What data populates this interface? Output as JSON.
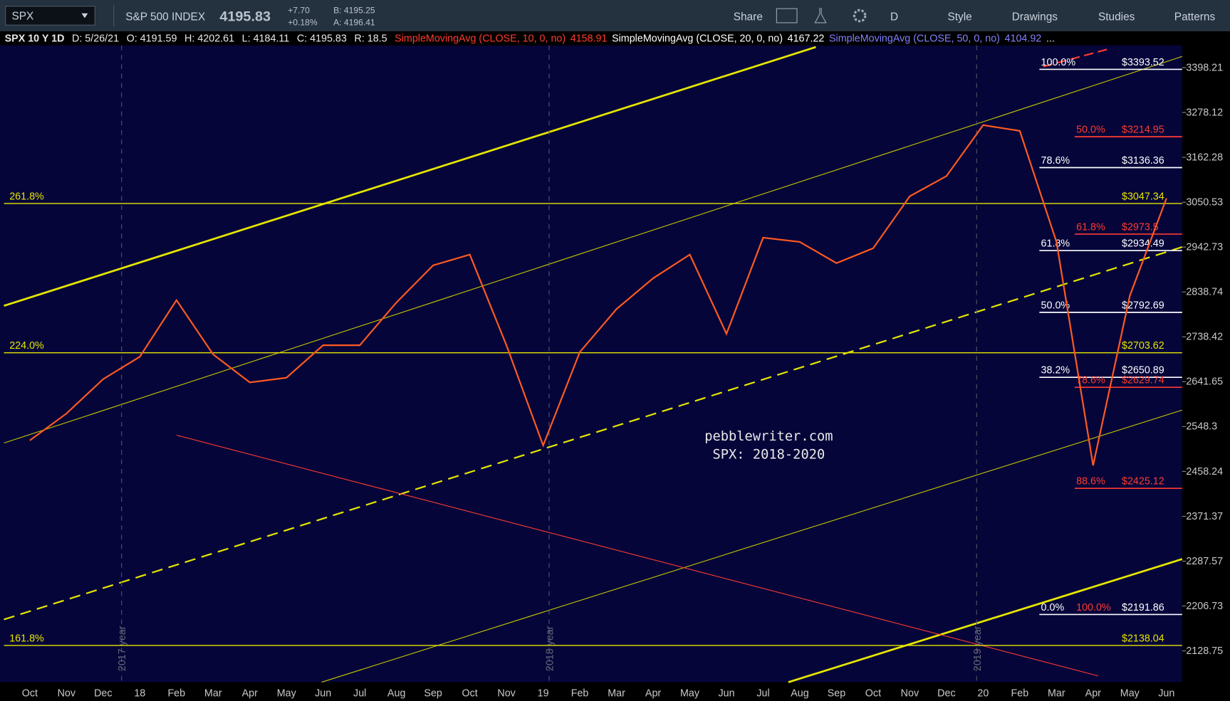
{
  "toolbar": {
    "symbol": "SPX",
    "name": "S&P 500 INDEX",
    "last": "4195.83",
    "change": "+7.70",
    "change_pct": "+0.18%",
    "bid": "B: 4195.25",
    "ask": "A: 4196.41",
    "buttons": [
      "Share",
      "D",
      "Style",
      "Drawings",
      "Studies",
      "Patterns"
    ]
  },
  "info_bar": {
    "chart": "SPX 10 Y 1D",
    "date": "D: 5/26/21",
    "open": "O: 4191.59",
    "high": "H: 4202.61",
    "low": "L: 4184.11",
    "close": "C: 4195.83",
    "range": "R: 18.5",
    "studies": [
      {
        "name": "SimpleMovingAvg (CLOSE, 10, 0, no)",
        "value": "4158.91",
        "color": "#ff3b30"
      },
      {
        "name": "SimpleMovingAvg (CLOSE, 20, 0, no)",
        "value": "4167.22",
        "color": "#ffffff"
      },
      {
        "name": "SimpleMovingAvg (CLOSE, 50, 0, no)",
        "value": "4104.92",
        "color": "#8080ff"
      }
    ],
    "more": "..."
  },
  "chart_data": {
    "type": "line",
    "log_scale": true,
    "color": "#ff5a1f",
    "categories": [
      "Oct",
      "Nov",
      "Dec",
      "18",
      "Feb",
      "Mar",
      "Apr",
      "May",
      "Jun",
      "Jul",
      "Aug",
      "Sep",
      "Oct",
      "Nov",
      "19",
      "Feb",
      "Mar",
      "Apr",
      "May",
      "Jun",
      "Jul",
      "Aug",
      "Sep",
      "Oct",
      "Nov",
      "Dec",
      "20",
      "Feb",
      "Mar",
      "Apr",
      "May",
      "Jun"
    ],
    "values": [
      2520,
      2575,
      2647,
      2695,
      2820,
      2700,
      2640,
      2650,
      2720,
      2720,
      2815,
      2900,
      2925,
      2720,
      2510,
      2705,
      2800,
      2870,
      2925,
      2745,
      2965,
      2955,
      2905,
      2940,
      3065,
      3115,
      3245,
      3230,
      2955,
      2470,
      2830,
      3060
    ],
    "ylim": [
      2076,
      3459
    ],
    "yticks": [
      3398.21,
      3278.12,
      3162.28,
      3050.53,
      2942.73,
      2838.74,
      2738.42,
      2641.65,
      2548.3,
      2458.24,
      2371.37,
      2287.57,
      2206.73,
      2128.75
    ]
  },
  "levels": [
    {
      "pct": "100.0%",
      "price": {
        "value": 3393.52,
        "label": "$3393.52"
      },
      "color": "#ffffff",
      "extent": "fib"
    },
    {
      "pct": "50.0%",
      "price": {
        "value": 3214.95,
        "label": "$3214.95"
      },
      "color": "#ff3b30",
      "extent": "fib-red"
    },
    {
      "pct": "78.6%",
      "price": {
        "value": 3136.36,
        "label": "$3136.36"
      },
      "color": "#ffffff",
      "extent": "fib"
    },
    {
      "pct": "261.8%",
      "price": {
        "value": 3047.34,
        "label": "$3047.34"
      },
      "color": "#e6e600",
      "extent": "full"
    },
    {
      "pct": "61.8%",
      "price": {
        "value": 2973.5,
        "label": "$2973.5"
      },
      "color": "#ff3b30",
      "extent": "fib-red"
    },
    {
      "pct": "61.8%",
      "price": {
        "value": 2934.49,
        "label": "$2934.49"
      },
      "color": "#ffffff",
      "extent": "fib"
    },
    {
      "pct": "50.0%",
      "price": {
        "value": 2792.69,
        "label": "$2792.69"
      },
      "color": "#ffffff",
      "extent": "fib"
    },
    {
      "pct": "224.0%",
      "price": {
        "value": 2703.62,
        "label": "$2703.62"
      },
      "color": "#e6e600",
      "extent": "full"
    },
    {
      "pct": "38.2%",
      "price": {
        "value": 2650.89,
        "label": "$2650.89"
      },
      "color": "#ffffff",
      "extent": "fib"
    },
    {
      "pct": "78.6%",
      "price": {
        "value": 2629.74,
        "label": "$2629.74"
      },
      "color": "#ff3b30",
      "extent": "fib-red"
    },
    {
      "pct": "88.6%",
      "price": {
        "value": 2425.12,
        "label": "$2425.12"
      },
      "color": "#ff3b30",
      "extent": "fib-red"
    },
    {
      "pct": "0.0%",
      "pct2": "100.0%",
      "pct2_color": "#ff3b30",
      "price": {
        "value": 2191.86,
        "label": "$2191.86"
      },
      "color": "#ffffff",
      "extent": "fib"
    },
    {
      "pct": "161.8%",
      "price": {
        "value": 2138.04,
        "label": "$2138.04"
      },
      "color": "#e6e600",
      "extent": "full"
    }
  ],
  "watermark": [
    "pebblewriter.com",
    "SPX: 2018-2020"
  ],
  "year_markers": [
    "2017 year",
    "2018 year",
    "2019 year"
  ]
}
